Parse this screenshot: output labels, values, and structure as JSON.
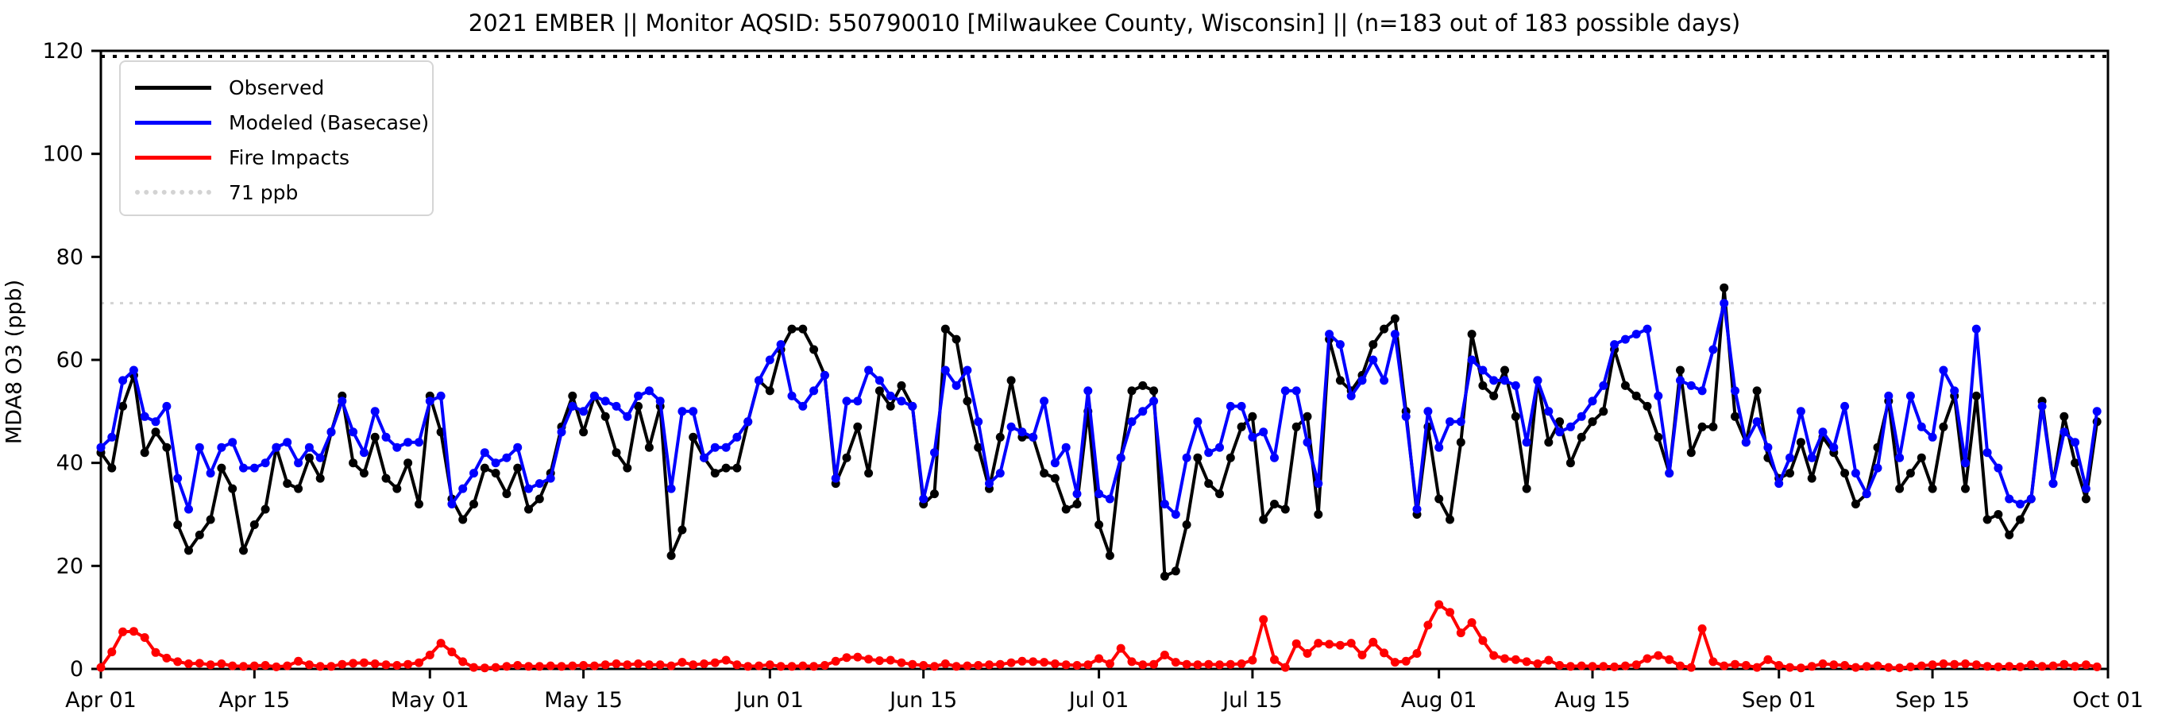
{
  "title": "2021 EMBER || Monitor AQSID: 550790010 [Milwaukee County, Wisconsin] || (n=183 out of 183 possible days)",
  "y_axis": {
    "label": "MDA8 O3 (ppb)",
    "tick_values": [
      0,
      20,
      40,
      60,
      80,
      100,
      120
    ],
    "range": [
      0,
      120
    ]
  },
  "x_axis": {
    "n_days": 183,
    "tick_labels": [
      "Apr 01",
      "Apr 15",
      "May 01",
      "May 15",
      "Jun 01",
      "Jun 15",
      "Jul 01",
      "Jul 15",
      "Aug 01",
      "Aug 15",
      "Sep 01",
      "Sep 15",
      "Oct 01"
    ],
    "tick_day_offsets": [
      0,
      14,
      30,
      44,
      61,
      75,
      91,
      105,
      122,
      136,
      153,
      167,
      183
    ]
  },
  "legend": {
    "items": [
      {
        "label": "Observed",
        "color": "#000000",
        "style": "solid"
      },
      {
        "label": "Modeled (Basecase)",
        "color": "#0000ff",
        "style": "solid"
      },
      {
        "label": "Fire Impacts",
        "color": "#ff0000",
        "style": "solid"
      },
      {
        "label": "71 ppb",
        "color": "#d3d3d3",
        "style": "dotted"
      }
    ]
  },
  "chart_data": {
    "type": "line",
    "title": "2021 EMBER || Monitor AQSID: 550790010 [Milwaukee County, Wisconsin] || (n=183 out of 183 possible days)",
    "xlabel": "",
    "ylabel": "MDA8 O3 (ppb)",
    "ylim": [
      0,
      120
    ],
    "grid": false,
    "legend_position": "upper left",
    "x_start": "Apr 01",
    "x_end": "Sep 30",
    "x_tick_labels": [
      "Apr 01",
      "Apr 15",
      "May 01",
      "May 15",
      "Jun 01",
      "Jun 15",
      "Jul 01",
      "Jul 15",
      "Aug 01",
      "Aug 15",
      "Sep 01",
      "Sep 15",
      "Oct 01"
    ],
    "x_tick_day_offsets": [
      0,
      14,
      30,
      44,
      61,
      75,
      91,
      105,
      122,
      136,
      153,
      167,
      183
    ],
    "threshold": {
      "value": 71,
      "label": "71 ppb",
      "color": "#d3d3d3"
    },
    "series": [
      {
        "name": "Observed",
        "color": "#000000",
        "marker": "circle",
        "values": [
          42,
          39,
          51,
          57,
          42,
          46,
          43,
          28,
          23,
          26,
          29,
          39,
          35,
          23,
          28,
          31,
          43,
          36,
          35,
          41,
          37,
          46,
          53,
          40,
          38,
          45,
          37,
          35,
          40,
          32,
          53,
          46,
          33,
          29,
          32,
          39,
          38,
          34,
          39,
          31,
          33,
          38,
          47,
          53,
          46,
          53,
          49,
          42,
          39,
          51,
          43,
          51,
          22,
          27,
          45,
          41,
          38,
          39,
          39,
          48,
          56,
          54,
          62,
          66,
          66,
          62,
          57,
          36,
          41,
          47,
          38,
          54,
          51,
          55,
          51,
          32,
          34,
          66,
          64,
          52,
          43,
          35,
          45,
          56,
          45,
          45,
          38,
          37,
          31,
          32,
          50,
          28,
          22,
          41,
          54,
          55,
          54,
          18,
          19,
          28,
          41,
          36,
          34,
          41,
          47,
          49,
          29,
          32,
          31,
          47,
          49,
          30,
          64,
          56,
          54,
          57,
          63,
          66,
          68,
          50,
          30,
          47,
          33,
          29,
          44,
          65,
          55,
          53,
          58,
          49,
          35,
          56,
          44,
          48,
          40,
          45,
          48,
          50,
          62,
          55,
          53,
          51,
          45,
          38,
          58,
          42,
          47,
          47,
          74,
          49,
          44,
          54,
          41,
          37,
          38,
          44,
          37,
          45,
          42,
          38,
          32,
          34,
          43,
          52,
          35,
          38,
          41,
          35,
          47,
          53,
          35,
          53,
          29,
          30,
          26,
          29,
          33,
          52,
          36,
          49,
          40,
          33,
          48
        ]
      },
      {
        "name": "Modeled (Basecase)",
        "color": "#0000ff",
        "marker": "circle",
        "values": [
          43,
          45,
          56,
          58,
          49,
          48,
          51,
          37,
          31,
          43,
          38,
          43,
          44,
          39,
          39,
          40,
          43,
          44,
          40,
          43,
          41,
          46,
          52,
          46,
          42,
          50,
          45,
          43,
          44,
          44,
          52,
          53,
          32,
          35,
          38,
          42,
          40,
          41,
          43,
          35,
          36,
          37,
          46,
          51,
          50,
          53,
          52,
          51,
          49,
          53,
          54,
          52,
          35,
          50,
          50,
          41,
          43,
          43,
          45,
          48,
          56,
          60,
          63,
          53,
          51,
          54,
          57,
          37,
          52,
          52,
          58,
          56,
          53,
          52,
          51,
          33,
          42,
          58,
          55,
          58,
          48,
          36,
          38,
          47,
          46,
          45,
          52,
          40,
          43,
          34,
          54,
          34,
          33,
          41,
          48,
          50,
          52,
          32,
          30,
          41,
          48,
          42,
          43,
          51,
          51,
          45,
          46,
          41,
          54,
          54,
          44,
          36,
          65,
          63,
          53,
          56,
          60,
          56,
          65,
          49,
          31,
          50,
          43,
          48,
          48,
          60,
          58,
          56,
          56,
          55,
          44,
          56,
          50,
          46,
          47,
          49,
          52,
          55,
          63,
          64,
          65,
          66,
          53,
          38,
          56,
          55,
          54,
          62,
          71,
          54,
          44,
          48,
          43,
          36,
          41,
          50,
          41,
          46,
          43,
          51,
          38,
          34,
          39,
          53,
          41,
          53,
          47,
          45,
          58,
          54,
          40,
          66,
          42,
          39,
          33,
          32,
          33,
          51,
          36,
          46,
          44,
          35,
          50
        ]
      },
      {
        "name": "Fire Impacts",
        "color": "#ff0000",
        "marker": "circle",
        "values": [
          0.3,
          3.3,
          7.2,
          7.3,
          6.1,
          3.2,
          2.1,
          1.4,
          1.0,
          1.1,
          0.8,
          1.0,
          0.6,
          0.5,
          0.6,
          0.7,
          0.4,
          0.6,
          1.5,
          0.8,
          0.5,
          0.5,
          0.9,
          1.1,
          1.2,
          1.0,
          0.8,
          0.7,
          0.9,
          1.2,
          2.7,
          5.0,
          3.3,
          1.4,
          0.3,
          0.2,
          0.3,
          0.5,
          0.7,
          0.5,
          0.5,
          0.6,
          0.5,
          0.6,
          0.7,
          0.6,
          0.8,
          1.0,
          0.8,
          1.0,
          0.8,
          0.8,
          0.6,
          1.3,
          0.8,
          1.0,
          1.2,
          1.7,
          0.8,
          0.5,
          0.6,
          0.8,
          0.5,
          0.5,
          0.6,
          0.5,
          0.7,
          1.5,
          2.2,
          2.3,
          1.9,
          1.6,
          1.7,
          1.2,
          0.9,
          0.7,
          0.5,
          1.0,
          0.5,
          0.6,
          0.7,
          0.8,
          0.9,
          1.2,
          1.5,
          1.4,
          1.3,
          1.0,
          0.8,
          0.7,
          0.8,
          2.0,
          1.0,
          4.0,
          1.4,
          0.8,
          0.9,
          2.7,
          1.3,
          0.9,
          0.8,
          0.9,
          0.8,
          0.9,
          1.0,
          1.7,
          9.6,
          1.8,
          0.3,
          4.9,
          3.0,
          5.0,
          4.8,
          4.6,
          5.0,
          2.7,
          5.2,
          3.1,
          1.3,
          1.5,
          3.0,
          8.5,
          12.5,
          11.0,
          7.0,
          9.0,
          5.5,
          2.6,
          2.0,
          1.8,
          1.4,
          1.0,
          1.7,
          0.7,
          0.5,
          0.6,
          0.5,
          0.5,
          0.4,
          0.6,
          0.8,
          2.0,
          2.6,
          1.8,
          0.6,
          0.3,
          7.8,
          1.4,
          0.6,
          0.9,
          0.7,
          0.3,
          1.8,
          0.7,
          0.3,
          0.2,
          0.5,
          1.0,
          0.8,
          0.7,
          0.3,
          0.5,
          0.6,
          0.3,
          0.2,
          0.4,
          0.6,
          0.8,
          1.0,
          0.9,
          1.0,
          0.8,
          0.5,
          0.4,
          0.5,
          0.4,
          0.8,
          0.5,
          0.6,
          0.9,
          0.5,
          0.8,
          0.4
        ]
      }
    ]
  }
}
